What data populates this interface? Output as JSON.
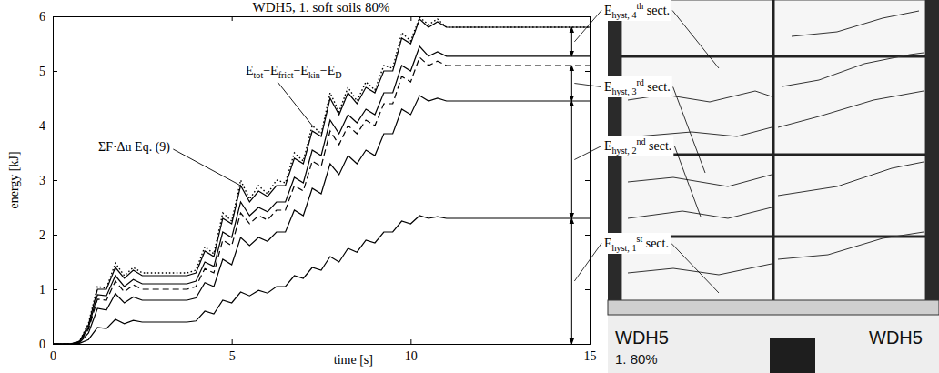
{
  "chart_data": {
    "type": "line",
    "title": "WDH5, 1. soft soils 80%",
    "x_label": "time [s]",
    "y_label": "energy [kJ]",
    "color": "#000000",
    "xlim": [
      0,
      15
    ],
    "xticks": [
      0,
      5,
      10,
      15
    ],
    "ylim": [
      0,
      6
    ],
    "yticks": [
      0,
      1,
      2,
      3,
      4,
      5,
      6
    ],
    "x": [
      0,
      0.25,
      0.5,
      0.75,
      1,
      1.25,
      1.5,
      1.75,
      2,
      2.25,
      2.5,
      2.75,
      3,
      3.25,
      3.5,
      3.75,
      4,
      4.25,
      4.5,
      4.75,
      5,
      5.25,
      5.5,
      5.75,
      6,
      6.25,
      6.5,
      6.75,
      7,
      7.25,
      7.5,
      7.75,
      8,
      8.25,
      8.5,
      8.75,
      9,
      9.25,
      9.5,
      9.75,
      10,
      10.25,
      10.5,
      10.75,
      11,
      11.25,
      11.5,
      11.75,
      12,
      12.25,
      12.5,
      12.75,
      13,
      13.25,
      13.5,
      13.75,
      14,
      14.25,
      14.5,
      14.75,
      15
    ],
    "series": [
      {
        "line_style": "solid",
        "values": [
          0,
          0,
          0,
          0.01,
          0.08,
          0.3,
          0.28,
          0.45,
          0.37,
          0.43,
          0.4,
          0.4,
          0.4,
          0.4,
          0.4,
          0.4,
          0.42,
          0.6,
          0.55,
          0.8,
          0.75,
          0.95,
          0.88,
          0.98,
          0.93,
          1.05,
          1.05,
          1.25,
          1.2,
          1.4,
          1.35,
          1.6,
          1.5,
          1.75,
          1.68,
          1.9,
          1.85,
          2.05,
          2.05,
          2.25,
          2.2,
          2.35,
          2.3,
          2.33,
          2.3,
          2.3,
          2.3,
          2.3,
          2.3,
          2.3,
          2.3,
          2.3,
          2.3,
          2.3,
          2.3,
          2.3,
          2.3,
          2.3,
          2.3,
          2.3,
          2.3
        ]
      },
      {
        "line_style": "solid",
        "values": [
          0,
          0,
          0,
          0.02,
          0.2,
          0.65,
          0.62,
          0.92,
          0.75,
          0.86,
          0.8,
          0.8,
          0.8,
          0.8,
          0.8,
          0.8,
          0.84,
          1.12,
          1.05,
          1.55,
          1.45,
          1.95,
          1.8,
          1.95,
          1.88,
          2.05,
          2.05,
          2.45,
          2.35,
          2.85,
          2.75,
          3.3,
          3.1,
          3.45,
          3.3,
          3.55,
          3.45,
          3.85,
          3.85,
          4.3,
          4.2,
          4.55,
          4.45,
          4.5,
          4.45,
          4.45,
          4.45,
          4.45,
          4.45,
          4.45,
          4.45,
          4.45,
          4.45,
          4.45,
          4.45,
          4.45,
          4.45,
          4.45,
          4.45,
          4.45,
          4.45
        ]
      },
      {
        "line_style": "dashed",
        "values": [
          0,
          0,
          0,
          0.03,
          0.27,
          0.82,
          0.8,
          1.15,
          0.95,
          1.08,
          1.0,
          1.0,
          1.0,
          1.0,
          1.0,
          1.0,
          1.05,
          1.38,
          1.3,
          1.9,
          1.8,
          2.4,
          2.2,
          2.35,
          2.27,
          2.45,
          2.45,
          2.9,
          2.8,
          3.35,
          3.25,
          3.9,
          3.65,
          4.0,
          3.85,
          4.1,
          4.0,
          4.4,
          4.4,
          4.9,
          4.8,
          5.25,
          5.1,
          5.18,
          5.1,
          5.1,
          5.1,
          5.1,
          5.1,
          5.1,
          5.1,
          5.1,
          5.1,
          5.1,
          5.1,
          5.1,
          5.1,
          5.1,
          5.1,
          5.1,
          5.1
        ]
      },
      {
        "line_style": "solid",
        "values": [
          0,
          0,
          0,
          0.04,
          0.3,
          0.9,
          0.88,
          1.25,
          1.05,
          1.18,
          1.1,
          1.1,
          1.1,
          1.1,
          1.1,
          1.1,
          1.15,
          1.5,
          1.42,
          2.05,
          1.95,
          2.6,
          2.35,
          2.5,
          2.42,
          2.6,
          2.6,
          3.05,
          2.95,
          3.55,
          3.45,
          4.1,
          3.85,
          4.2,
          4.05,
          4.3,
          4.2,
          4.6,
          4.6,
          5.1,
          5.0,
          5.45,
          5.27,
          5.35,
          5.27,
          5.27,
          5.27,
          5.27,
          5.27,
          5.27,
          5.27,
          5.27,
          5.27,
          5.27,
          5.27,
          5.27,
          5.27,
          5.27,
          5.27,
          5.27,
          5.27
        ]
      },
      {
        "line_style": "solid",
        "values": [
          0,
          0,
          0,
          0.05,
          0.35,
          1.0,
          1.0,
          1.4,
          1.2,
          1.35,
          1.25,
          1.25,
          1.25,
          1.25,
          1.25,
          1.25,
          1.3,
          1.7,
          1.6,
          2.3,
          2.2,
          2.9,
          2.6,
          2.8,
          2.7,
          2.9,
          2.9,
          3.4,
          3.3,
          3.9,
          3.8,
          4.5,
          4.2,
          4.6,
          4.4,
          4.7,
          4.6,
          5.0,
          5.0,
          5.6,
          5.5,
          5.95,
          5.8,
          5.9,
          5.8,
          5.8,
          5.8,
          5.8,
          5.8,
          5.8,
          5.8,
          5.8,
          5.8,
          5.8,
          5.8,
          5.8,
          5.8,
          5.8,
          5.8,
          5.8,
          5.8
        ]
      },
      {
        "line_style": "dotted",
        "values": [
          0,
          0,
          0,
          0.05,
          0.38,
          1.05,
          1.02,
          1.48,
          1.25,
          1.4,
          1.3,
          1.3,
          1.3,
          1.3,
          1.3,
          1.3,
          1.35,
          1.78,
          1.65,
          2.4,
          2.25,
          3.0,
          2.65,
          2.9,
          2.75,
          3.0,
          2.95,
          3.5,
          3.35,
          4.0,
          3.85,
          4.6,
          4.25,
          4.7,
          4.45,
          4.8,
          4.65,
          5.1,
          5.05,
          5.7,
          5.55,
          5.98,
          5.85,
          5.95,
          5.8,
          5.8,
          5.8,
          5.8,
          5.8,
          5.8,
          5.8,
          5.8,
          5.8,
          5.8,
          5.8,
          5.8,
          5.8,
          5.8,
          5.8,
          5.8,
          5.8
        ]
      }
    ],
    "annotations": [
      {
        "text": [
          "E",
          {
            "sub": "tot"
          },
          "−E",
          {
            "sub": "frict"
          },
          "−E",
          {
            "sub": "kin"
          },
          "−E",
          {
            "sub": "D"
          }
        ],
        "x": 7.25,
        "y": 4.0
      },
      {
        "text": [
          "ΣF·Δu Eq. (9)"
        ],
        "x": 5.25,
        "y": 2.9
      },
      {
        "text": [
          "E",
          {
            "sub": "hyst, 1"
          },
          {
            "sup": "st"
          },
          " sect."
        ],
        "x": 14.5,
        "from": 0,
        "to": 2.3
      },
      {
        "text": [
          "E",
          {
            "sub": "hyst, 2"
          },
          {
            "sup": "nd"
          },
          " sect."
        ],
        "x": 14.5,
        "from": 2.3,
        "to": 4.45
      },
      {
        "text": [
          "E",
          {
            "sub": "hyst, 3"
          },
          {
            "sup": "rd"
          },
          " sect."
        ],
        "x": 14.5,
        "from": 4.45,
        "to": 5.1
      },
      {
        "text": [
          "E",
          {
            "sub": "hyst, 4"
          },
          {
            "sup": "th"
          },
          " sect."
        ],
        "x": 14.5,
        "from": 5.27,
        "to": 5.8
      }
    ]
  },
  "photo": {
    "labels": [
      "WDH5",
      "1. 80%",
      "WDH5"
    ]
  }
}
